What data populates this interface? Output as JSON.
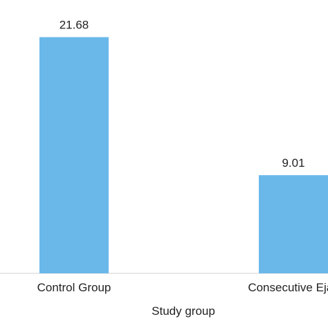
{
  "chart_data": {
    "type": "bar",
    "categories": [
      "Control Group",
      "Consecutive Ejac"
    ],
    "values": [
      21.68,
      9.01
    ],
    "data_labels": [
      "21.68",
      "9.01"
    ],
    "title": "",
    "xlabel": "Study group",
    "ylabel": "",
    "ylim": [
      0,
      23.5
    ],
    "grid": false,
    "legend": "none",
    "bar_color": "#6ab8ea",
    "axis_color": "#d0d0d0"
  }
}
